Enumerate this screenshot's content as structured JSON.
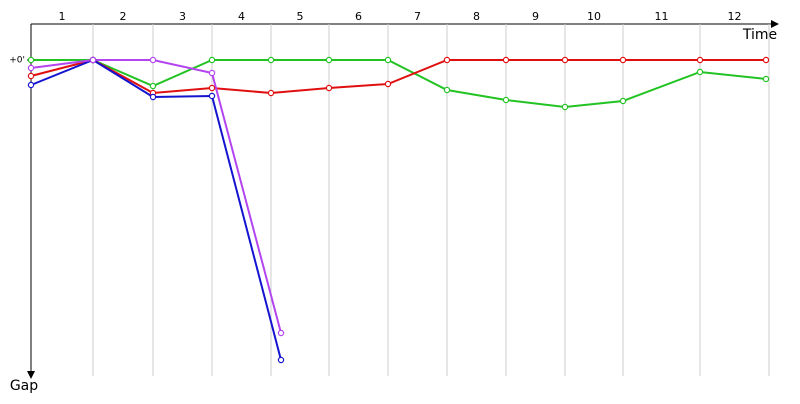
{
  "chart_data": {
    "type": "line",
    "x_label": "Time",
    "y_label": "Gap",
    "categories": [
      "1",
      "2",
      "3",
      "4",
      "5",
      "6",
      "7",
      "8",
      "9",
      "10",
      "11",
      "12"
    ],
    "lap_ends": [
      62,
      122,
      181,
      240,
      298,
      357,
      416,
      475,
      534,
      592,
      669,
      738
    ],
    "xlim": [
      0,
      740
    ],
    "ylim": [
      0,
      316
    ],
    "yticks": [
      {
        "value": 0,
        "label": "+0'"
      }
    ],
    "series": [
      {
        "name": "Green",
        "color": "#22c322",
        "x": [
          0,
          62,
          122,
          181,
          240,
          298,
          357,
          416,
          475,
          534,
          592,
          669,
          735
        ],
        "values": [
          0,
          0,
          26,
          0,
          0,
          0,
          0,
          30,
          40,
          47,
          41,
          12,
          19
        ]
      },
      {
        "name": "Red",
        "color": "#e01010",
        "x": [
          0,
          62,
          122,
          181,
          240,
          298,
          357,
          416,
          475,
          534,
          592,
          669,
          735
        ],
        "values": [
          16,
          0,
          33,
          28,
          33,
          28,
          24,
          0,
          0,
          0,
          0,
          0,
          0
        ]
      },
      {
        "name": "Blue",
        "color": "#1414d0",
        "x": [
          0,
          62,
          122,
          181,
          250
        ],
        "values": [
          25,
          0,
          37,
          36,
          300
        ]
      },
      {
        "name": "Purple",
        "color": "#b444f0",
        "x": [
          0,
          62,
          122,
          181,
          250
        ],
        "values": [
          8,
          0,
          0,
          13,
          273
        ]
      }
    ]
  }
}
